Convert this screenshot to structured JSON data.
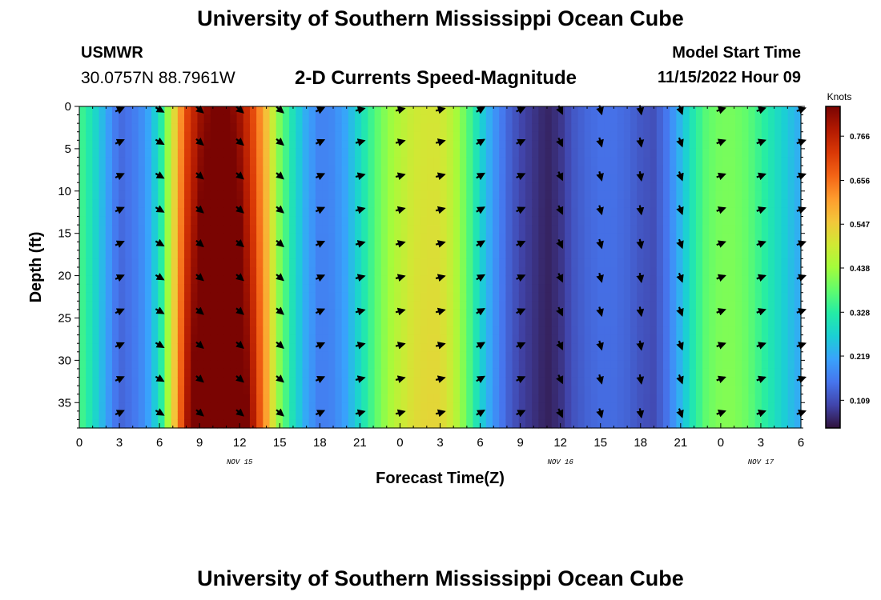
{
  "header": {
    "title": "University of Southern Mississippi Ocean Cube",
    "station_name": "USMWR",
    "station_coords": "30.0757N  88.7961W",
    "chart_title": "2-D Currents Speed-Magnitude",
    "model_start_label": "Model Start Time",
    "model_start_value": "11/15/2022 Hour 09"
  },
  "footer": {
    "title": "University of Southern Mississippi Ocean Cube"
  },
  "chart_data": {
    "type": "heatmap",
    "title": "2-D Currents Speed-Magnitude",
    "xlabel": "Forecast Time(Z)",
    "ylabel": "Depth (ft)",
    "xlim": [
      0,
      54
    ],
    "ylim": [
      0,
      38
    ],
    "x_ticks": [
      0,
      3,
      6,
      9,
      12,
      15,
      18,
      21,
      24,
      27,
      30,
      33,
      36,
      39,
      42,
      45,
      48,
      51,
      54
    ],
    "x_tick_labels": [
      "0",
      "3",
      "6",
      "9",
      "12",
      "15",
      "18",
      "21",
      "0",
      "3",
      "6",
      "9",
      "12",
      "15",
      "18",
      "21",
      "0",
      "3",
      "6"
    ],
    "y_ticks": [
      0,
      5,
      10,
      15,
      20,
      25,
      30,
      35
    ],
    "y_tick_labels": [
      "0",
      "5",
      "10",
      "15",
      "20",
      "25",
      "30",
      "35"
    ],
    "date_labels": [
      {
        "x": 12,
        "text": "NOV 15"
      },
      {
        "x": 36,
        "text": "NOV 16"
      },
      {
        "x": 51,
        "text": "NOV 17"
      }
    ],
    "colorbar": {
      "units": "Knots",
      "min": 0.04,
      "max": 0.84,
      "ticks": [
        0.109,
        0.219,
        0.328,
        0.438,
        0.547,
        0.656,
        0.766
      ],
      "tick_labels": [
        "0.109",
        "0.219",
        "0.328",
        "0.438",
        "0.547",
        "0.656",
        "0.766"
      ],
      "colormap": [
        "#30123b",
        "#4145ab",
        "#4675ed",
        "#39a2fc",
        "#1bcfd4",
        "#24eca6",
        "#61fc6c",
        "#a4fc3b",
        "#d1e834",
        "#f3c63a",
        "#fe9b2d",
        "#f36315",
        "#d93806",
        "#b11901",
        "#7a0402"
      ]
    },
    "speed_profile": {
      "description": "Depth-averaged current speed (knots) per forecast hour",
      "hours": [
        0,
        1,
        2,
        3,
        4,
        5,
        6,
        7,
        8,
        9,
        10,
        11,
        12,
        13,
        14,
        15,
        16,
        17,
        18,
        19,
        20,
        21,
        22,
        23,
        24,
        25,
        26,
        27,
        28,
        29,
        30,
        31,
        32,
        33,
        34,
        35,
        36,
        37,
        38,
        39,
        40,
        41,
        42,
        43,
        44,
        45,
        46,
        47,
        48,
        49,
        50,
        51,
        52,
        53,
        54
      ],
      "speed": [
        0.36,
        0.3,
        0.22,
        0.14,
        0.16,
        0.2,
        0.3,
        0.5,
        0.7,
        0.8,
        0.84,
        0.85,
        0.8,
        0.7,
        0.56,
        0.4,
        0.3,
        0.22,
        0.17,
        0.18,
        0.22,
        0.29,
        0.36,
        0.42,
        0.46,
        0.49,
        0.5,
        0.5,
        0.46,
        0.38,
        0.28,
        0.2,
        0.14,
        0.1,
        0.08,
        0.06,
        0.08,
        0.12,
        0.14,
        0.15,
        0.15,
        0.14,
        0.12,
        0.11,
        0.16,
        0.24,
        0.32,
        0.38,
        0.4,
        0.4,
        0.38,
        0.34,
        0.3,
        0.26,
        0.22
      ]
    },
    "vectors": {
      "hours": [
        3,
        6,
        9,
        12,
        15,
        18,
        21,
        24,
        27,
        30,
        33,
        36,
        39,
        42,
        45,
        48,
        51,
        54
      ],
      "depths": [
        0,
        4,
        8,
        12,
        16,
        20,
        24,
        28,
        32,
        36
      ],
      "direction_deg": [
        -25,
        30,
        40,
        40,
        40,
        -25,
        -15,
        -15,
        -15,
        -30,
        -25,
        65,
        75,
        80,
        70,
        -20,
        -20,
        -20
      ]
    }
  }
}
